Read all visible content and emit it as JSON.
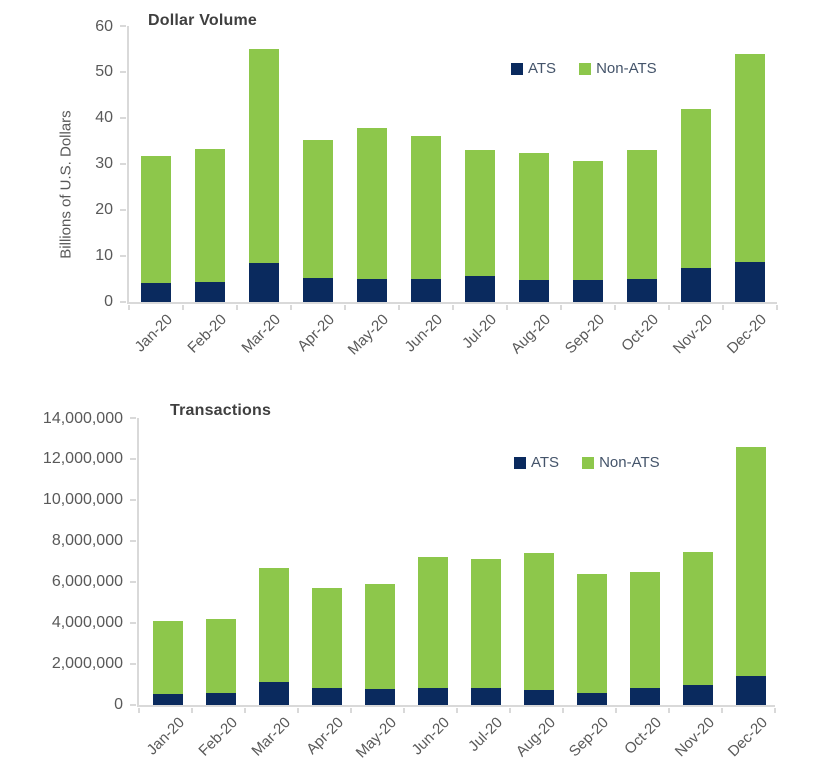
{
  "colors": {
    "ats": "#0a2a5e",
    "non_ats": "#8dc74b",
    "axis_line": "#d9d9d9",
    "tick_text": "#595959",
    "title_text": "#3f3f3f"
  },
  "chart_data": [
    {
      "type": "bar",
      "stacked": true,
      "title": "Dollar Volume",
      "xlabel": "",
      "ylabel": "Billions of U.S. Dollars",
      "ylim": [
        0,
        60
      ],
      "grid": false,
      "legend_position": "top-right-inside",
      "y_ticks": [
        "0",
        "10",
        "20",
        "30",
        "40",
        "50",
        "60"
      ],
      "categories": [
        "Jan-20",
        "Feb-20",
        "Mar-20",
        "Apr-20",
        "May-20",
        "Jun-20",
        "Jul-20",
        "Aug-20",
        "Sep-20",
        "Oct-20",
        "Nov-20",
        "Dec-20"
      ],
      "series": [
        {
          "name": "ATS",
          "color": "#0a2a5e",
          "values": [
            4.0,
            4.3,
            8.3,
            5.1,
            4.8,
            5.0,
            5.5,
            4.7,
            4.6,
            5.0,
            7.2,
            8.7
          ]
        },
        {
          "name": "Non-ATS",
          "color": "#8dc74b",
          "values": [
            27.8,
            29.0,
            46.6,
            30.0,
            32.9,
            31.0,
            27.5,
            27.7,
            26.1,
            28.0,
            34.7,
            45.1
          ]
        }
      ]
    },
    {
      "type": "bar",
      "stacked": true,
      "title": "Transactions",
      "xlabel": "",
      "ylabel": "",
      "ylim": [
        0,
        14000000
      ],
      "grid": false,
      "legend_position": "top-right-inside",
      "y_ticks": [
        "0",
        "2,000,000",
        "4,000,000",
        "6,000,000",
        "8,000,000",
        "10,000,000",
        "12,000,000",
        "14,000,000"
      ],
      "categories": [
        "Jan-20",
        "Feb-20",
        "Mar-20",
        "Apr-20",
        "May-20",
        "Jun-20",
        "Jul-20",
        "Aug-20",
        "Sep-20",
        "Oct-20",
        "Nov-20",
        "Dec-20"
      ],
      "series": [
        {
          "name": "ATS",
          "color": "#0a2a5e",
          "values": [
            530000,
            550000,
            1120000,
            810000,
            760000,
            800000,
            800000,
            710000,
            580000,
            800000,
            960000,
            1400000
          ]
        },
        {
          "name": "Non-ATS",
          "color": "#8dc74b",
          "values": [
            3540000,
            3620000,
            5550000,
            4870000,
            5140000,
            6430000,
            6330000,
            6690000,
            5820000,
            5660000,
            6500000,
            11190000
          ]
        }
      ]
    }
  ]
}
